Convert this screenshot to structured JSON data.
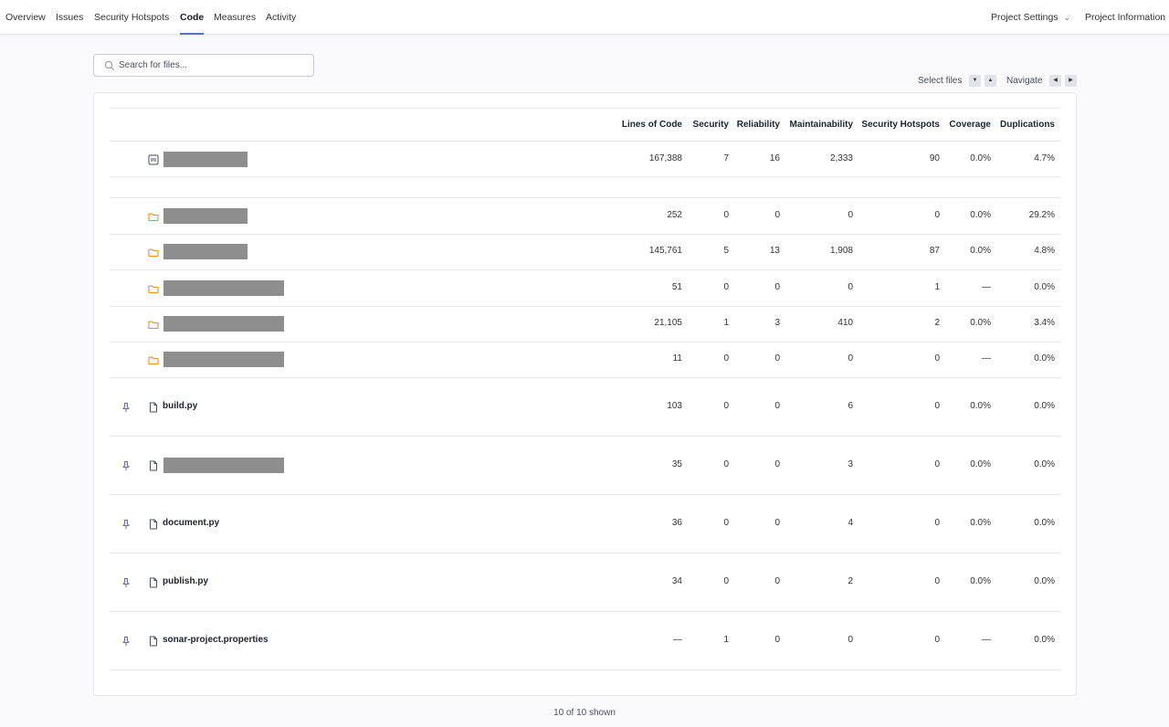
{
  "nav": {
    "tabs": [
      {
        "label": "Overview"
      },
      {
        "label": "Issues"
      },
      {
        "label": "Security Hotspots"
      },
      {
        "label": "Code",
        "active": true
      },
      {
        "label": "Measures"
      },
      {
        "label": "Activity"
      }
    ],
    "project_settings": "Project Settings",
    "project_information": "Project Information"
  },
  "search": {
    "placeholder": "Search for files..."
  },
  "keyboard": {
    "select_files": "Select files",
    "navigate": "Navigate"
  },
  "table": {
    "columns": [
      "Lines of Code",
      "Security",
      "Reliability",
      "Maintainability",
      "Security Hotspots",
      "Coverage",
      "Duplications"
    ],
    "root_row": {
      "icon": "project-icon",
      "name": "",
      "values": [
        "167,388",
        "7",
        "16",
        "2,333",
        "90",
        "0.0%",
        "4.7%"
      ]
    },
    "dir_rows": [
      {
        "icon": "folder-icon",
        "name": "",
        "values": [
          "252",
          "0",
          "0",
          "0",
          "0",
          "0.0%",
          "29.2%"
        ]
      },
      {
        "icon": "folder-icon",
        "name": "",
        "values": [
          "145,761",
          "5",
          "13",
          "1,908",
          "87",
          "0.0%",
          "4.8%"
        ]
      },
      {
        "icon": "folder-icon",
        "name": "",
        "values": [
          "51",
          "0",
          "0",
          "0",
          "1",
          "—",
          "0.0%"
        ]
      },
      {
        "icon": "folder-icon",
        "name": "",
        "values": [
          "21,105",
          "1",
          "3",
          "410",
          "2",
          "0.0%",
          "3.4%"
        ]
      },
      {
        "icon": "folder-icon",
        "name": "",
        "values": [
          "11",
          "0",
          "0",
          "0",
          "0",
          "—",
          "0.0%"
        ]
      }
    ],
    "file_rows": [
      {
        "icon": "file-icon",
        "name": "build.py",
        "values": [
          "103",
          "0",
          "0",
          "6",
          "0",
          "0.0%",
          "0.0%"
        ]
      },
      {
        "icon": "file-icon",
        "name": "",
        "values": [
          "35",
          "0",
          "0",
          "3",
          "0",
          "0.0%",
          "0.0%"
        ]
      },
      {
        "icon": "file-icon",
        "name": "document.py",
        "values": [
          "36",
          "0",
          "0",
          "4",
          "0",
          "0.0%",
          "0.0%"
        ]
      },
      {
        "icon": "file-icon",
        "name": "publish.py",
        "values": [
          "34",
          "0",
          "0",
          "2",
          "0",
          "0.0%",
          "0.0%"
        ]
      },
      {
        "icon": "file-icon",
        "name": "sonar-project.properties",
        "values": [
          "—",
          "1",
          "0",
          "0",
          "0",
          "—",
          "0.0%"
        ]
      }
    ]
  },
  "footer": {
    "shown": "10 of 10 shown"
  },
  "colors": {
    "accent": "#5d6cd0",
    "folder": "#e8912d",
    "pin": "#5d6cd0"
  }
}
